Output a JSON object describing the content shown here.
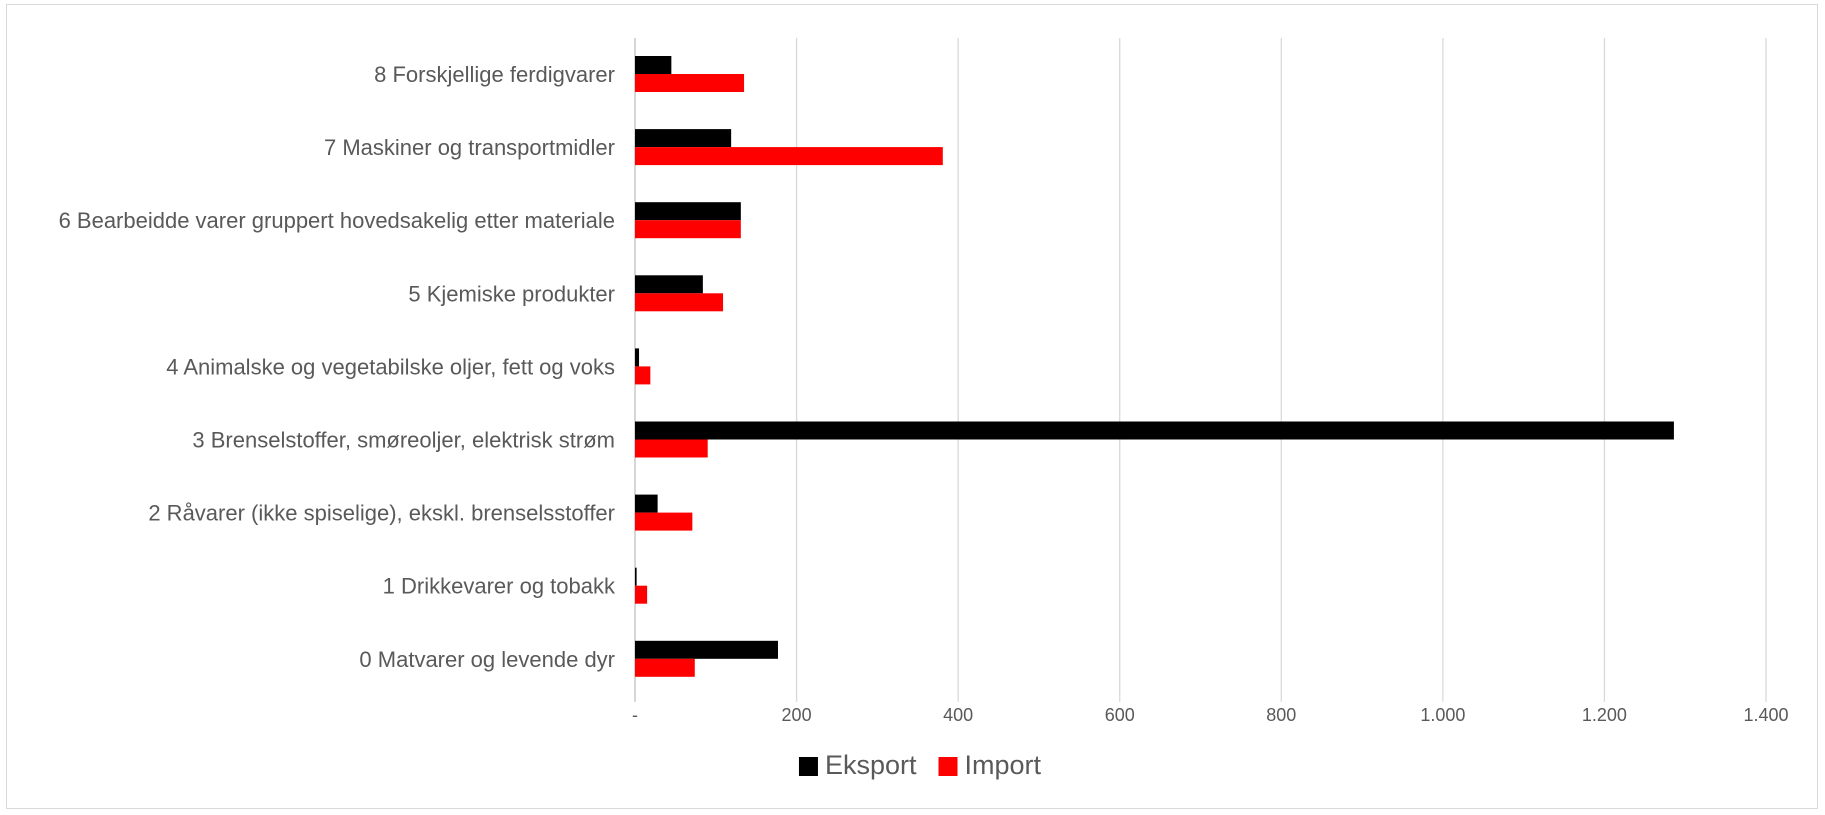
{
  "chart_data": {
    "type": "bar",
    "orientation": "horizontal",
    "categories": [
      "8 Forskjellige ferdigvarer",
      "7 Maskiner og transportmidler",
      "6 Bearbeidde varer gruppert hovedsakelig etter materiale",
      "5 Kjemiske produkter",
      "4 Animalske og vegetabilske oljer, fett og voks",
      "3 Brenselstoffer, smøreoljer, elektrisk strøm",
      "2 Råvarer (ikke spiselige), ekskl. brenselsstoffer",
      "1 Drikkevarer og tobakk",
      "0 Matvarer og levende dyr"
    ],
    "series": [
      {
        "name": "Eksport",
        "color": "#000000",
        "values": [
          45,
          119,
          131,
          84,
          5,
          1286,
          28,
          2,
          177
        ]
      },
      {
        "name": "Import",
        "color": "#ff0000",
        "values": [
          135,
          381,
          131,
          109,
          19,
          90,
          71,
          15,
          74
        ]
      }
    ],
    "xlim": [
      0,
      1400
    ],
    "xticks": [
      0,
      200,
      400,
      600,
      800,
      1000,
      1200,
      1400
    ],
    "xtick_labels": [
      "-",
      "200",
      "400",
      "600",
      "800",
      "1.000",
      "1.200",
      "1.400"
    ],
    "grid": true,
    "legend_position": "bottom",
    "title": "",
    "xlabel": "",
    "ylabel": ""
  }
}
